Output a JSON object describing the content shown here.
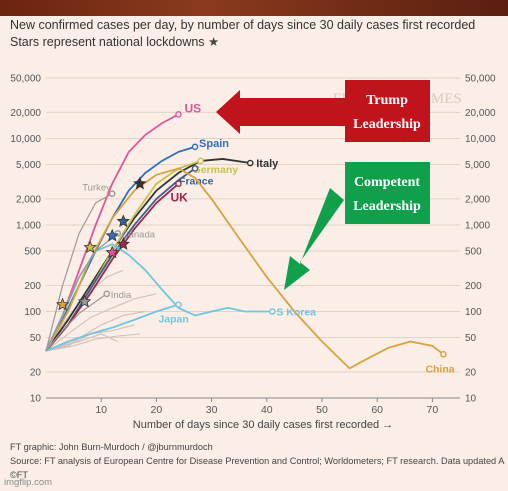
{
  "title_line1": "New confirmed cases per day, by number of days since 30 daily cases first recorded",
  "title_line2": "Stars represent national lockdowns",
  "star_glyph": "★",
  "callouts": [
    {
      "text": "Trump Leadership",
      "color": "#c0141c"
    },
    {
      "text": "Competent Leadership",
      "color": "#10a04c"
    }
  ],
  "watermark_text": "FINANCIAL TIMES",
  "footer": {
    "credit": "FT graphic: John Burn-Murdoch / @jburnmurdoch",
    "source": "Source: FT analysis of European Centre for Disease Prevention and Control; Worldometers; FT research. Data updated April 01, 19:00 GMT",
    "extra": "©FT"
  },
  "imgflip": "imgflip.com",
  "chart_data": {
    "type": "line",
    "xlabel": "Number of days since 30 daily cases first recorded →",
    "yscale": "log",
    "xlim": [
      0,
      75
    ],
    "ylim": [
      10,
      50000
    ],
    "x_ticks": [
      10,
      20,
      30,
      40,
      50,
      60,
      70
    ],
    "y_ticks": [
      10,
      20,
      50,
      100,
      200,
      500,
      1000,
      2000,
      5000,
      10000,
      20000,
      50000
    ],
    "y_tick_labels": [
      "10",
      "20",
      "50",
      "100",
      "200",
      "500",
      "1,000",
      "2,000",
      "5,000",
      "10,000",
      "20,000",
      "50,000"
    ],
    "grid": true,
    "series": [
      {
        "name": "US",
        "color": "#e0579a",
        "bold": true,
        "x": [
          0,
          3,
          6,
          9,
          12,
          15,
          18,
          21,
          24
        ],
        "y": [
          35,
          90,
          300,
          1000,
          3000,
          7000,
          11000,
          15000,
          19000
        ]
      },
      {
        "name": "Spain",
        "color": "#2d6fbf",
        "bold": true,
        "x": [
          0,
          3,
          6,
          9,
          12,
          15,
          18,
          21,
          24,
          27
        ],
        "y": [
          35,
          80,
          200,
          500,
          1200,
          2500,
          4000,
          5500,
          7000,
          8000
        ]
      },
      {
        "name": "Italy",
        "color": "#333333",
        "bold": true,
        "x": [
          0,
          4,
          8,
          12,
          16,
          20,
          24,
          28,
          32,
          37
        ],
        "y": [
          35,
          80,
          200,
          500,
          1200,
          2500,
          4000,
          5500,
          5800,
          5200
        ]
      },
      {
        "name": "Germany",
        "color": "#c8c24a",
        "bold": true,
        "x": [
          0,
          4,
          8,
          12,
          16,
          20,
          24,
          28
        ],
        "y": [
          35,
          70,
          180,
          500,
          1300,
          3000,
          4500,
          5500
        ]
      },
      {
        "name": "France",
        "color": "#3a5f8f",
        "bold": true,
        "x": [
          0,
          4,
          8,
          12,
          16,
          20,
          24,
          27
        ],
        "y": [
          35,
          70,
          180,
          450,
          1000,
          2000,
          3300,
          4500
        ]
      },
      {
        "name": "UK",
        "color": "#a0264a",
        "bold": true,
        "x": [
          0,
          4,
          8,
          12,
          16,
          20,
          24
        ],
        "y": [
          35,
          70,
          160,
          400,
          900,
          1800,
          3000
        ]
      },
      {
        "name": "China",
        "color": "#d9a23c",
        "bold": true,
        "x": [
          0,
          4,
          8,
          12,
          16,
          20,
          24,
          27,
          30,
          35,
          40,
          45,
          50,
          55,
          58,
          62,
          66,
          70,
          72
        ],
        "y": [
          35,
          100,
          400,
          1200,
          2500,
          3800,
          4500,
          3500,
          2000,
          700,
          250,
          100,
          45,
          22,
          28,
          38,
          45,
          40,
          32
        ]
      },
      {
        "name": "S Korea",
        "color": "#6ec6e0",
        "bold": true,
        "x": [
          0,
          3,
          6,
          9,
          12,
          15,
          18,
          21,
          24,
          27,
          30,
          33,
          36,
          39,
          41
        ],
        "y": [
          35,
          90,
          250,
          500,
          600,
          450,
          300,
          180,
          110,
          90,
          100,
          110,
          100,
          100,
          100
        ]
      },
      {
        "name": "Japan",
        "color": "#6ec6e0",
        "bold": true,
        "x": [
          0,
          4,
          8,
          12,
          16,
          20,
          24
        ],
        "y": [
          35,
          45,
          55,
          65,
          80,
          100,
          120
        ]
      },
      {
        "name": "Turkey",
        "color": "#999999",
        "bold": false,
        "x": [
          0,
          3,
          6,
          9,
          12
        ],
        "y": [
          35,
          200,
          800,
          1800,
          2300
        ]
      },
      {
        "name": "Canada",
        "color": "#999999",
        "bold": false,
        "x": [
          0,
          3,
          6,
          9,
          13
        ],
        "y": [
          35,
          90,
          250,
          500,
          800
        ]
      },
      {
        "name": "India",
        "color": "#999999",
        "bold": false,
        "x": [
          0,
          3,
          6,
          9,
          11
        ],
        "y": [
          35,
          60,
          95,
          130,
          160
        ]
      }
    ],
    "lockdowns": [
      {
        "series": "Italy",
        "x": 17,
        "y": 3000
      },
      {
        "series": "Spain",
        "x": 12,
        "y": 750
      },
      {
        "series": "France",
        "x": 14,
        "y": 1100
      },
      {
        "series": "UK",
        "x": 14,
        "y": 600
      },
      {
        "series": "Germany",
        "x": 8,
        "y": 550
      },
      {
        "series": "China",
        "x": 3,
        "y": 120
      },
      {
        "series": "India",
        "x": 7,
        "y": 130
      },
      {
        "series": "US",
        "x": 12,
        "y": 480
      }
    ]
  }
}
